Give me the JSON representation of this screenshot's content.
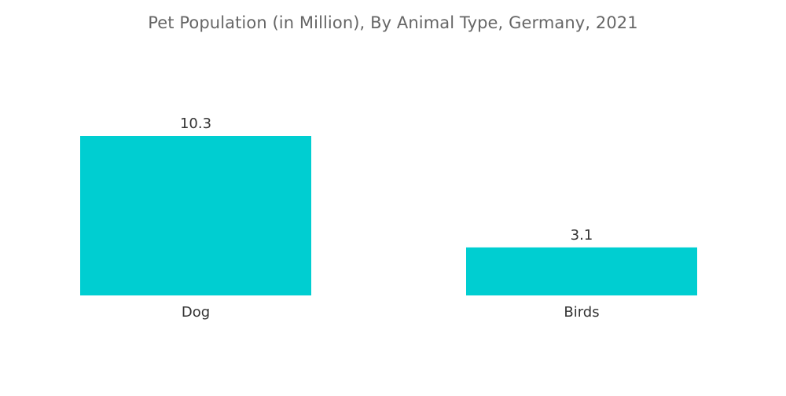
{
  "chart_data": {
    "type": "bar",
    "title": "Pet Population (in Million), By Animal Type, Germany, 2021",
    "categories": [
      "Dog",
      "Birds"
    ],
    "values": [
      10.3,
      3.1
    ],
    "data_labels": [
      "10.3",
      "3.1"
    ],
    "xlabel": "",
    "ylabel": "",
    "ylim": [
      0,
      10.3
    ],
    "grid": false,
    "legend": "none",
    "bar_color": "#00CED1"
  }
}
